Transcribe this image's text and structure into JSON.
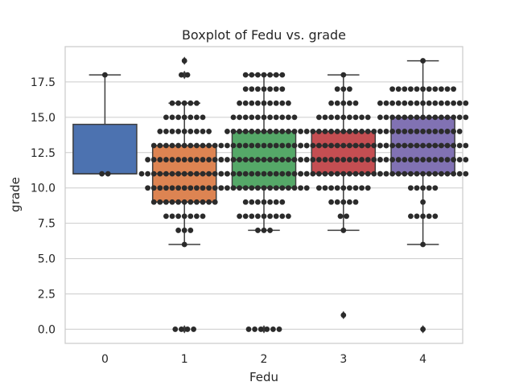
{
  "chart_data": {
    "type": "box",
    "title": "Boxplot of Fedu vs. grade",
    "xlabel": "Fedu",
    "ylabel": "grade",
    "categories": [
      "0",
      "1",
      "2",
      "3",
      "4"
    ],
    "ylim": [
      -1,
      20
    ],
    "yticks": [
      0.0,
      2.5,
      5.0,
      7.5,
      10.0,
      12.5,
      15.0,
      17.5
    ],
    "ytick_labels": [
      "0.0",
      "2.5",
      "5.0",
      "7.5",
      "10.0",
      "12.5",
      "15.0",
      "17.5"
    ],
    "grid": true,
    "colors": [
      "#4c72b0",
      "#dd8452",
      "#55a868",
      "#c44e52",
      "#8172b3"
    ],
    "boxes": [
      {
        "category": "0",
        "q1": 11,
        "median": 11,
        "q3": 14.5,
        "whisker_low": 11,
        "whisker_high": 18,
        "fliers": []
      },
      {
        "category": "1",
        "q1": 9,
        "median": 11,
        "q3": 13,
        "whisker_low": 6,
        "whisker_high": 16,
        "fliers": [
          0,
          18,
          18,
          19
        ]
      },
      {
        "category": "2",
        "q1": 10,
        "median": 12,
        "q3": 14,
        "whisker_low": 7,
        "whisker_high": 18,
        "fliers": [
          0
        ]
      },
      {
        "category": "3",
        "q1": 11,
        "median": 13,
        "q3": 14,
        "whisker_low": 7,
        "whisker_high": 18,
        "fliers": [
          1
        ]
      },
      {
        "category": "4",
        "q1": 11,
        "median": 13,
        "q3": 15,
        "whisker_low": 6,
        "whisker_high": 19,
        "fliers": [
          0
        ]
      }
    ],
    "swarm": [
      {
        "category": "0",
        "points": [
          [
            11,
            2
          ],
          [
            18,
            1
          ]
        ]
      },
      {
        "category": "1",
        "points": [
          [
            0,
            4
          ],
          [
            6,
            1
          ],
          [
            7,
            3
          ],
          [
            8,
            7
          ],
          [
            9,
            11
          ],
          [
            10,
            13
          ],
          [
            11,
            15
          ],
          [
            12,
            13
          ],
          [
            13,
            11
          ],
          [
            14,
            9
          ],
          [
            15,
            7
          ],
          [
            16,
            5
          ],
          [
            18,
            2
          ],
          [
            19,
            1
          ]
        ]
      },
      {
        "category": "2",
        "points": [
          [
            0,
            6
          ],
          [
            7,
            3
          ],
          [
            8,
            9
          ],
          [
            9,
            7
          ],
          [
            10,
            15
          ],
          [
            11,
            15
          ],
          [
            12,
            15
          ],
          [
            13,
            15
          ],
          [
            14,
            13
          ],
          [
            15,
            11
          ],
          [
            16,
            9
          ],
          [
            17,
            7
          ],
          [
            18,
            7
          ]
        ]
      },
      {
        "category": "3",
        "points": [
          [
            1,
            1
          ],
          [
            7,
            1
          ],
          [
            8,
            2
          ],
          [
            9,
            5
          ],
          [
            10,
            9
          ],
          [
            11,
            15
          ],
          [
            12,
            13
          ],
          [
            13,
            15
          ],
          [
            14,
            13
          ],
          [
            15,
            9
          ],
          [
            16,
            5
          ],
          [
            17,
            3
          ],
          [
            18,
            1
          ]
        ]
      },
      {
        "category": "4",
        "points": [
          [
            0,
            1
          ],
          [
            6,
            1
          ],
          [
            8,
            5
          ],
          [
            9,
            1
          ],
          [
            10,
            5
          ],
          [
            11,
            15
          ],
          [
            12,
            15
          ],
          [
            13,
            15
          ],
          [
            14,
            13
          ],
          [
            15,
            15
          ],
          [
            16,
            15
          ],
          [
            17,
            11
          ],
          [
            19,
            1
          ]
        ]
      }
    ]
  }
}
